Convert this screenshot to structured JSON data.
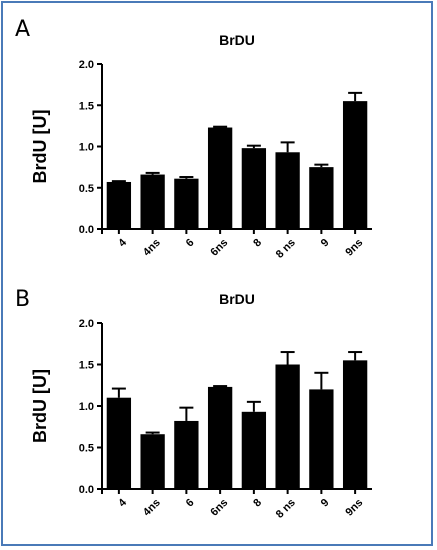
{
  "panels": [
    {
      "letter": "A",
      "chart_data": {
        "type": "bar",
        "title": "BrDU",
        "xlabel": "",
        "ylabel": "BrdU [U]",
        "categories": [
          "4",
          "4ns",
          "6",
          "6ns",
          "8",
          "8 ns",
          "9",
          "9ns"
        ],
        "values": [
          0.57,
          0.66,
          0.61,
          1.23,
          0.98,
          0.93,
          0.75,
          1.55
        ],
        "errors": [
          0.01,
          0.02,
          0.02,
          0.01,
          0.03,
          0.12,
          0.03,
          0.1
        ],
        "ylim": [
          0,
          2.0
        ],
        "yticks": [
          "0.0",
          "0.5",
          "1.0",
          "1.5",
          "2.0"
        ],
        "grid": false,
        "bar_color": "#000000"
      }
    },
    {
      "letter": "B",
      "chart_data": {
        "type": "bar",
        "title": "BrDU",
        "xlabel": "",
        "ylabel": "BrdU [U]",
        "categories": [
          "4",
          "4ns",
          "6",
          "6ns",
          "8",
          "8 ns",
          "9",
          "9ns"
        ],
        "values": [
          1.1,
          0.66,
          0.82,
          1.23,
          0.93,
          1.5,
          1.2,
          1.55
        ],
        "errors": [
          0.11,
          0.02,
          0.16,
          0.01,
          0.12,
          0.15,
          0.2,
          0.1
        ],
        "ylim": [
          0,
          2.0
        ],
        "yticks": [
          "0.0",
          "0.5",
          "1.0",
          "1.5",
          "2.0"
        ],
        "grid": false,
        "bar_color": "#000000"
      }
    }
  ],
  "frame_color": "#4a7ab8"
}
